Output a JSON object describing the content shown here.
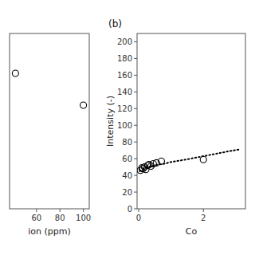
{
  "chart_data": [
    {
      "type": "scatter",
      "x": [
        42,
        100
      ],
      "values": [
        170,
        130
      ],
      "color": "#000000",
      "marker": "circle",
      "xlabel": "ion (ppm)",
      "xlim": [
        37,
        105
      ],
      "ylim": [
        0,
        220
      ],
      "xticks": [
        60,
        80,
        100
      ],
      "tick_labels": "x"
    },
    {
      "type": "scatter",
      "title": "(b)",
      "series": [
        {
          "type": "line",
          "line_style": "dotted",
          "color": "#000000",
          "x": [
            0.03,
            0.1,
            0.2,
            0.4,
            0.6,
            0.8,
            1.0,
            1.3,
            1.6,
            2.0,
            2.4,
            2.8,
            3.1
          ],
          "values": [
            45,
            47,
            49,
            51,
            53,
            54,
            56,
            58,
            60,
            63,
            66,
            69,
            71
          ]
        },
        {
          "type": "scatter",
          "marker": "circle",
          "color": "#000000",
          "x": [
            0.05,
            0.1,
            0.13,
            0.18,
            0.22,
            0.28,
            0.32,
            0.38,
            0.45,
            0.55,
            0.7,
            2.0
          ],
          "values": [
            46,
            49,
            48,
            50,
            47,
            52,
            53,
            51,
            54,
            55,
            57,
            59
          ]
        }
      ],
      "xlabel": "Co",
      "ylabel": "Intensity (-)",
      "xlim": [
        -0.05,
        3.3
      ],
      "ylim": [
        0,
        210
      ],
      "xticks": [
        0,
        2
      ],
      "yticks": [
        0,
        20,
        40,
        60,
        80,
        100,
        120,
        140,
        160,
        180,
        200
      ]
    }
  ]
}
